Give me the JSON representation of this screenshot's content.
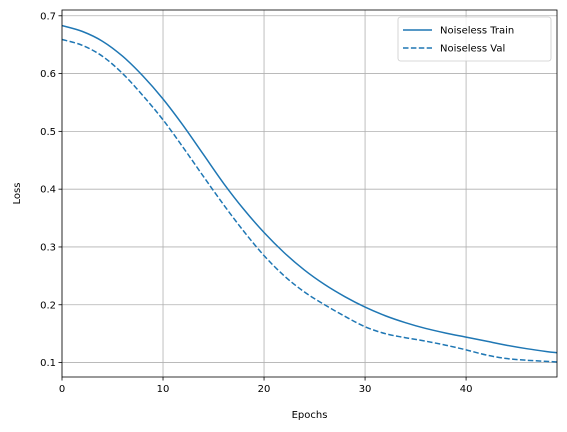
{
  "chart_data": {
    "type": "line",
    "title": "",
    "xlabel": "Epochs",
    "ylabel": "Loss",
    "xlim": [
      0,
      49
    ],
    "ylim": [
      0.075,
      0.71
    ],
    "xticks": [
      0,
      10,
      20,
      30,
      40
    ],
    "xtick_labels": [
      "0",
      "10",
      "20",
      "30",
      "40"
    ],
    "yticks": [
      0.1,
      0.2,
      0.3,
      0.4,
      0.5,
      0.6,
      0.7
    ],
    "ytick_labels": [
      "0.1",
      "0.2",
      "0.3",
      "0.4",
      "0.5",
      "0.6",
      "0.7"
    ],
    "grid": true,
    "legend_position": "top-right",
    "series": [
      {
        "name": "Noiseless Train",
        "color": "#1f77b4",
        "style": "solid",
        "x": [
          0,
          2,
          4,
          6,
          8,
          10,
          12,
          14,
          16,
          18,
          20,
          22,
          24,
          26,
          28,
          30,
          32,
          34,
          36,
          38,
          40,
          42,
          44,
          46,
          48,
          49
        ],
        "y": [
          0.683,
          0.673,
          0.656,
          0.63,
          0.596,
          0.556,
          0.51,
          0.46,
          0.41,
          0.365,
          0.325,
          0.29,
          0.26,
          0.235,
          0.214,
          0.196,
          0.181,
          0.169,
          0.159,
          0.151,
          0.144,
          0.137,
          0.13,
          0.124,
          0.119,
          0.117
        ]
      },
      {
        "name": "Noiseless Val",
        "color": "#1f77b4",
        "style": "dashed",
        "x": [
          0,
          2,
          4,
          6,
          8,
          10,
          12,
          14,
          16,
          18,
          20,
          22,
          24,
          26,
          28,
          30,
          32,
          34,
          36,
          38,
          40,
          42,
          44,
          46,
          48,
          49
        ],
        "y": [
          0.659,
          0.649,
          0.63,
          0.6,
          0.562,
          0.52,
          0.472,
          0.422,
          0.373,
          0.327,
          0.285,
          0.25,
          0.222,
          0.2,
          0.18,
          0.162,
          0.15,
          0.143,
          0.137,
          0.13,
          0.122,
          0.113,
          0.107,
          0.104,
          0.102,
          0.101
        ]
      }
    ]
  }
}
